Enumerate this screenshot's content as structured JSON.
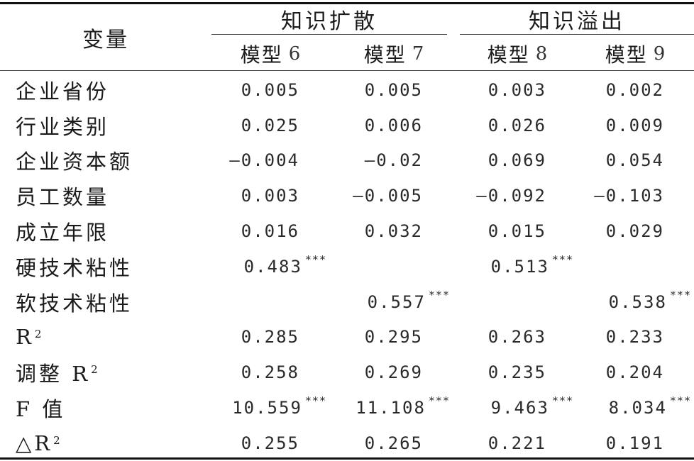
{
  "header": {
    "variable": "变量",
    "groups": [
      "知识扩散",
      "知识溢出"
    ],
    "models": [
      {
        "word": "模型",
        "num": "6"
      },
      {
        "word": "模型",
        "num": "7"
      },
      {
        "word": "模型",
        "num": "8"
      },
      {
        "word": "模型",
        "num": "9"
      }
    ]
  },
  "rows": [
    {
      "label": "企业省份",
      "values": [
        {
          "v": "0.005",
          "sig": ""
        },
        {
          "v": "0.005",
          "sig": ""
        },
        {
          "v": "0.003",
          "sig": ""
        },
        {
          "v": "0.002",
          "sig": ""
        }
      ]
    },
    {
      "label": "行业类别",
      "values": [
        {
          "v": "0.025",
          "sig": ""
        },
        {
          "v": "0.006",
          "sig": ""
        },
        {
          "v": "0.026",
          "sig": ""
        },
        {
          "v": "0.009",
          "sig": ""
        }
      ]
    },
    {
      "label": "企业资本额",
      "values": [
        {
          "v": "—0.004",
          "sig": ""
        },
        {
          "v": "—0.02",
          "sig": ""
        },
        {
          "v": "0.069",
          "sig": ""
        },
        {
          "v": "0.054",
          "sig": ""
        }
      ]
    },
    {
      "label": "员工数量",
      "values": [
        {
          "v": "0.003",
          "sig": ""
        },
        {
          "v": "—0.005",
          "sig": ""
        },
        {
          "v": "—0.092",
          "sig": ""
        },
        {
          "v": "—0.103",
          "sig": ""
        }
      ]
    },
    {
      "label": "成立年限",
      "values": [
        {
          "v": "0.016",
          "sig": ""
        },
        {
          "v": "0.032",
          "sig": ""
        },
        {
          "v": "0.015",
          "sig": ""
        },
        {
          "v": "0.029",
          "sig": ""
        }
      ]
    },
    {
      "label": "硬技术粘性",
      "values": [
        {
          "v": "0.483",
          "sig": "***"
        },
        {
          "v": "",
          "sig": ""
        },
        {
          "v": "0.513",
          "sig": "***"
        },
        {
          "v": "",
          "sig": ""
        }
      ]
    },
    {
      "label": "软技术粘性",
      "values": [
        {
          "v": "",
          "sig": ""
        },
        {
          "v": "0.557",
          "sig": "***"
        },
        {
          "v": "",
          "sig": ""
        },
        {
          "v": "0.538",
          "sig": "***"
        }
      ]
    },
    {
      "label": "R",
      "sup": "2",
      "values": [
        {
          "v": "0.285",
          "sig": ""
        },
        {
          "v": "0.295",
          "sig": ""
        },
        {
          "v": "0.263",
          "sig": ""
        },
        {
          "v": "0.233",
          "sig": ""
        }
      ]
    },
    {
      "label": "调整 R",
      "sup": "2",
      "values": [
        {
          "v": "0.258",
          "sig": ""
        },
        {
          "v": "0.269",
          "sig": ""
        },
        {
          "v": "0.235",
          "sig": ""
        },
        {
          "v": "0.204",
          "sig": ""
        }
      ]
    },
    {
      "label": "F 值",
      "values": [
        {
          "v": "10.559",
          "sig": "***"
        },
        {
          "v": "11.108",
          "sig": "***"
        },
        {
          "v": "9.463",
          "sig": "***"
        },
        {
          "v": "8.034",
          "sig": "***"
        }
      ]
    },
    {
      "label": "△R",
      "sup": "2",
      "values": [
        {
          "v": "0.255",
          "sig": ""
        },
        {
          "v": "0.265",
          "sig": ""
        },
        {
          "v": "0.221",
          "sig": ""
        },
        {
          "v": "0.191",
          "sig": ""
        }
      ]
    }
  ]
}
